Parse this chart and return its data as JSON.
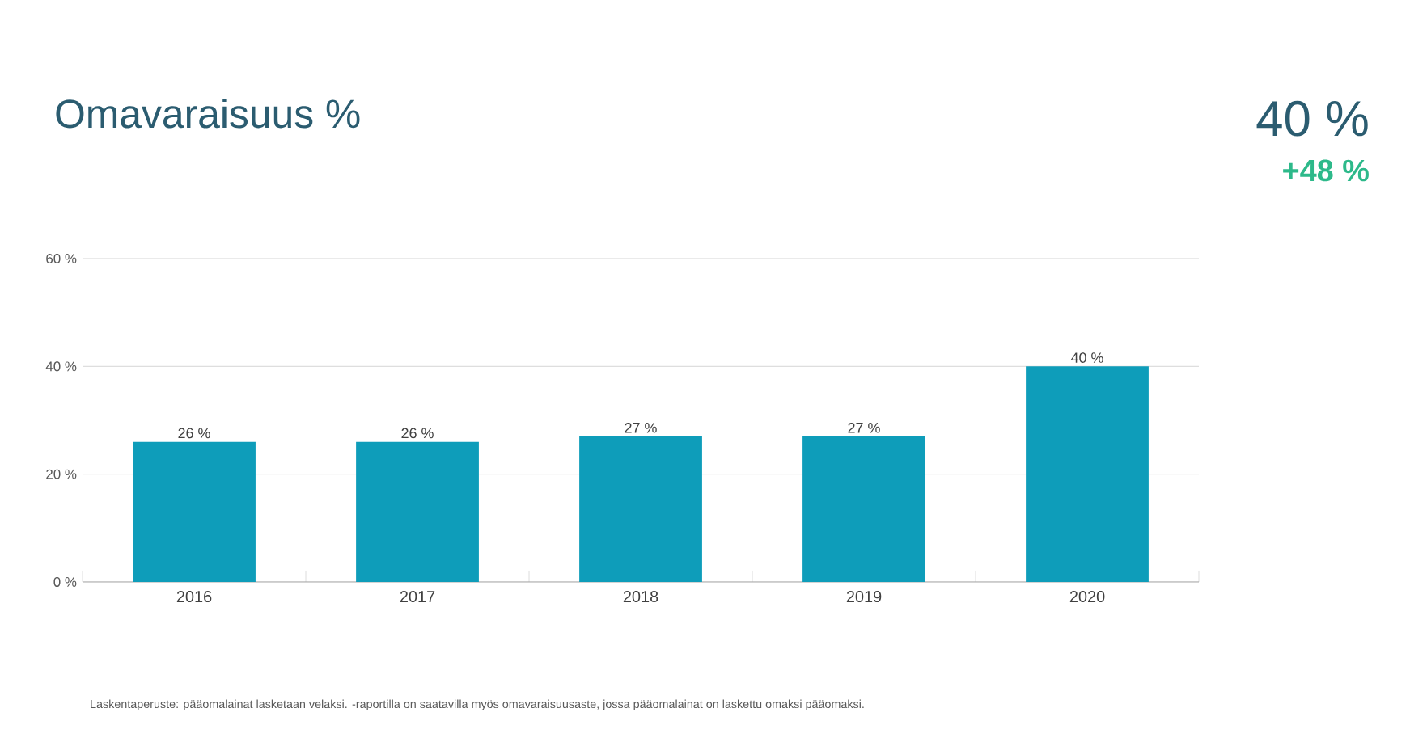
{
  "chart_data": {
    "type": "bar",
    "title": "Omavaraisuus %",
    "categories": [
      "2016",
      "2017",
      "2018",
      "2019",
      "2020"
    ],
    "values": [
      26,
      26,
      27,
      27,
      40
    ],
    "value_labels": [
      "26 %",
      "26 %",
      "27 %",
      "27 %",
      "40 %"
    ],
    "color": "#0e9dba",
    "ylim": [
      0,
      60
    ],
    "yticks": [
      {
        "value": 0,
        "label": "0 %"
      },
      {
        "value": 20,
        "label": "20 %"
      },
      {
        "value": 40,
        "label": "40 %"
      },
      {
        "value": 60,
        "label": "60 %"
      }
    ],
    "grid": "y",
    "annotations": [
      "40 %",
      "+48 %",
      "Laskentaperuste: pääomalainat lasketaan velaksi. -raportilla on saatavilla myös omavaraisuusaste, jossa pääomalainat on laskettu omaksi pääomaksi."
    ]
  }
}
